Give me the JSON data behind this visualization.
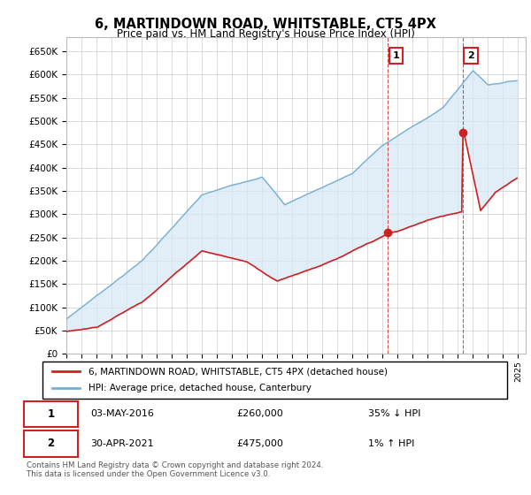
{
  "title": "6, MARTINDOWN ROAD, WHITSTABLE, CT5 4PX",
  "subtitle": "Price paid vs. HM Land Registry's House Price Index (HPI)",
  "hpi_color": "#74afd3",
  "hpi_fill_color": "#d6e8f5",
  "price_color": "#cc2222",
  "background_color": "#ffffff",
  "grid_color": "#cccccc",
  "ylim": [
    0,
    680000
  ],
  "yticks": [
    0,
    50000,
    100000,
    150000,
    200000,
    250000,
    300000,
    350000,
    400000,
    450000,
    500000,
    550000,
    600000,
    650000
  ],
  "sale1_year": 2016.35,
  "sale1_price": 260000,
  "sale1_label": "1",
  "sale2_year": 2021.33,
  "sale2_price": 475000,
  "sale2_label": "2",
  "xmin": 1995,
  "xmax": 2025.5,
  "legend1_text": "6, MARTINDOWN ROAD, WHITSTABLE, CT5 4PX (detached house)",
  "legend2_text": "HPI: Average price, detached house, Canterbury",
  "table_row1": [
    "1",
    "03-MAY-2016",
    "£260,000",
    "35% ↓ HPI"
  ],
  "table_row2": [
    "2",
    "30-APR-2021",
    "£475,000",
    "1% ↑ HPI"
  ],
  "footer": "Contains HM Land Registry data © Crown copyright and database right 2024.\nThis data is licensed under the Open Government Licence v3.0."
}
